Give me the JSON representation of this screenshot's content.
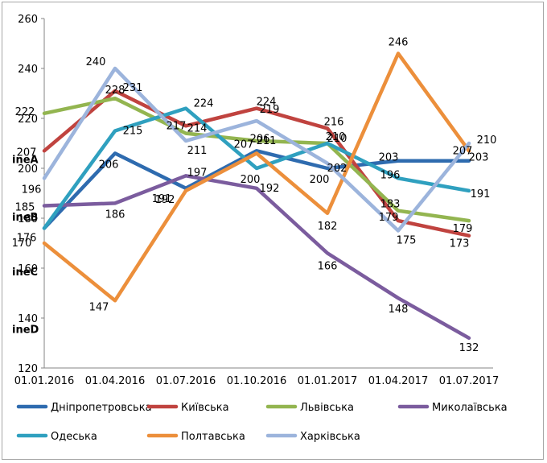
{
  "chart_data": {
    "type": "line",
    "x": [
      "01.01.2016",
      "01.04.2016",
      "01.07.2016",
      "01.10.2016",
      "01.01.2017",
      "01.04.2017",
      "01.07.2017"
    ],
    "ylim": [
      120,
      260
    ],
    "yticks": [
      "120",
      "140",
      "160",
      "180",
      "200",
      "220",
      "240",
      "260"
    ],
    "grid": false,
    "legend_position": "bottom",
    "stray_labels": [
      "ineA",
      "ineB",
      "ineC",
      "ineD"
    ],
    "series": [
      {
        "name": "Дніпропетровська",
        "color": "#2E6BAF",
        "values": [
          176,
          206,
          192,
          207,
          200,
          203,
          203
        ],
        "labels": [
          "",
          "206",
          "192",
          "207",
          "200",
          "203",
          "203"
        ]
      },
      {
        "name": "Київська",
        "color": "#C0433F",
        "values": [
          207,
          231,
          217,
          224,
          216,
          179,
          173
        ],
        "labels": [
          "207",
          "231",
          "217",
          "224",
          "216",
          "179",
          "173"
        ]
      },
      {
        "name": "Львівська",
        "color": "#93B550",
        "values": [
          222,
          228,
          214,
          211,
          210,
          183,
          179
        ],
        "labels": [
          "222",
          "228",
          "214",
          "211",
          "210",
          "183",
          "179"
        ]
      },
      {
        "name": "Миколаївська",
        "color": "#7B5C9E",
        "values": [
          185,
          186,
          197,
          192,
          166,
          148,
          132
        ],
        "labels": [
          "185",
          "186",
          "197",
          "192",
          "166",
          "148",
          "132"
        ]
      },
      {
        "name": "Одеська",
        "color": "#2FA0BF",
        "values": [
          176,
          215,
          224,
          200,
          210,
          196,
          191
        ],
        "labels": [
          "176",
          "215",
          "224",
          "200",
          "210",
          "196",
          "191"
        ]
      },
      {
        "name": "Полтавська",
        "color": "#EC8F3B",
        "values": [
          170,
          147,
          191,
          206,
          182,
          246,
          207
        ],
        "labels": [
          "170",
          "147",
          "191",
          "206",
          "182",
          "246",
          "207"
        ]
      },
      {
        "name": "Харківська",
        "color": "#9CB4DC",
        "values": [
          196,
          240,
          211,
          219,
          202,
          175,
          210
        ],
        "labels": [
          "196",
          "240",
          "211",
          "219",
          "202",
          "175",
          "210"
        ]
      }
    ]
  }
}
